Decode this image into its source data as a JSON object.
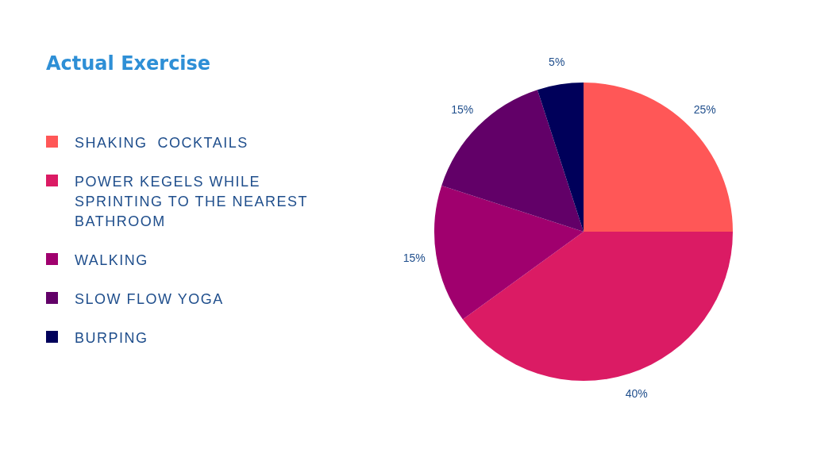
{
  "chart_data": {
    "type": "pie",
    "title": "Actual Exercise",
    "categories": [
      "SHAKING  COCKTAILS",
      "POWER KEGELS WHILE SPRINTING TO THE NEAREST BATHROOM",
      "WALKING",
      "SLOW FLOW YOGA",
      "BURPING"
    ],
    "values": [
      25,
      40,
      15,
      15,
      5
    ],
    "value_labels": [
      "25%",
      "40%",
      "15%",
      "15%",
      "5%"
    ],
    "colors": [
      "#ff5757",
      "#db1b64",
      "#a0006e",
      "#620068",
      "#00005a"
    ],
    "legend": "left"
  }
}
